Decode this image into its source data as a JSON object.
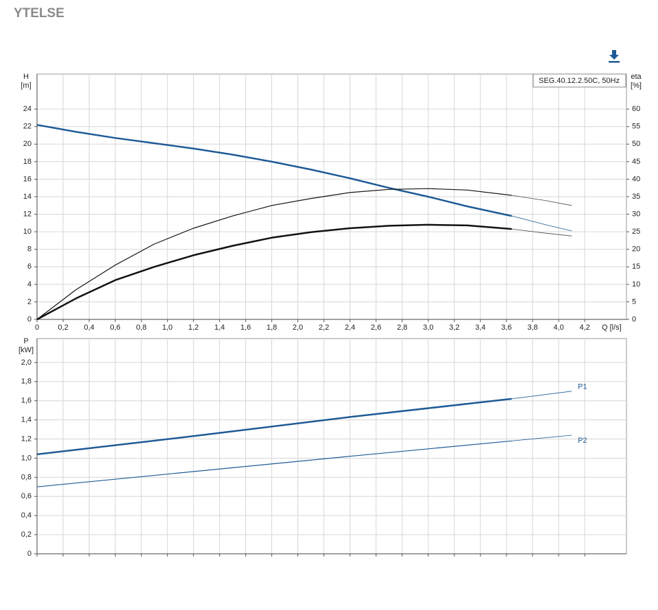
{
  "header": {
    "title": "YTELSE"
  },
  "chart_data": [
    {
      "type": "line",
      "y_label": "H",
      "y_unit": "[m]",
      "y2_label": "eta",
      "y2_unit": "[%]",
      "x_label": "Q [l/s]",
      "legend": "SEG.40.12.2.50C, 50Hz",
      "grid": true,
      "xlim": [
        0,
        4.52
      ],
      "xticks": [
        0,
        {
          "value": 0.2,
          "label": "0,2"
        },
        {
          "value": 0.4,
          "label": "0,4"
        },
        {
          "value": 0.6,
          "label": "0,6"
        },
        {
          "value": 0.8,
          "label": "0,8"
        },
        {
          "value": 1.0,
          "label": "1,0"
        },
        {
          "value": 1.2,
          "label": "1,2"
        },
        {
          "value": 1.4,
          "label": "1,4"
        },
        {
          "value": 1.6,
          "label": "1,6"
        },
        {
          "value": 1.8,
          "label": "1,8"
        },
        {
          "value": 2.0,
          "label": "2,0"
        },
        {
          "value": 2.2,
          "label": "2,2"
        },
        {
          "value": 2.4,
          "label": "2,4"
        },
        {
          "value": 2.6,
          "label": "2,6"
        },
        {
          "value": 2.8,
          "label": "2,8"
        },
        {
          "value": 3.0,
          "label": "3,0"
        },
        {
          "value": 3.2,
          "label": "3,2"
        },
        {
          "value": 3.4,
          "label": "3,4"
        },
        {
          "value": 3.6,
          "label": "3,6"
        },
        {
          "value": 3.8,
          "label": "3,8"
        },
        {
          "value": 4.0,
          "label": "4,0"
        },
        {
          "value": 4.2,
          "label": "4,2"
        }
      ],
      "ylim": [
        0,
        28
      ],
      "yticks": [
        0,
        2,
        4,
        6,
        8,
        10,
        12,
        14,
        16,
        18,
        20,
        22,
        24
      ],
      "y2lim": [
        0,
        70
      ],
      "y2ticks": [
        0,
        5,
        10,
        15,
        20,
        25,
        30,
        35,
        40,
        45,
        50,
        55,
        60
      ],
      "x": [
        0,
        0.3,
        0.6,
        0.9,
        1.2,
        1.5,
        1.8,
        2.1,
        2.4,
        2.7,
        3.0,
        3.3,
        3.64,
        3.9,
        4.1
      ],
      "series": [
        {
          "color": "#1f5a96",
          "width": 2.5,
          "values": [
            22.2,
            21.4,
            20.7,
            20.1,
            19.5,
            18.8,
            18.0,
            17.1,
            16.1,
            15.0,
            14.0,
            12.9,
            11.8,
            null,
            null
          ]
        },
        {
          "color": "#1f5a96",
          "width": 0.8,
          "values": [
            null,
            null,
            null,
            null,
            null,
            null,
            null,
            null,
            null,
            null,
            null,
            null,
            11.8,
            10.8,
            10.1
          ]
        },
        {
          "color": "#111111",
          "width": 1.2,
          "axis": "y2",
          "values": [
            0,
            8.5,
            15.5,
            21.5,
            26,
            29.5,
            32.5,
            34.5,
            36.2,
            37.1,
            37.3,
            36.9,
            35.4,
            null,
            null
          ]
        },
        {
          "color": "#444444",
          "width": 0.8,
          "axis": "y2",
          "values": [
            null,
            null,
            null,
            null,
            null,
            null,
            null,
            null,
            null,
            null,
            null,
            null,
            35.4,
            33.9,
            32.5
          ]
        },
        {
          "color": "#111111",
          "width": 2.5,
          "axis": "y2",
          "values": [
            0,
            6,
            11.2,
            15,
            18.3,
            21,
            23.3,
            24.9,
            26,
            26.7,
            27,
            26.8,
            25.8,
            null,
            null
          ]
        },
        {
          "color": "#444444",
          "width": 0.8,
          "axis": "y2",
          "values": [
            null,
            null,
            null,
            null,
            null,
            null,
            null,
            null,
            null,
            null,
            null,
            null,
            25.8,
            24.6,
            23.8
          ]
        }
      ]
    },
    {
      "type": "line",
      "y_label": "P",
      "y_unit": "[kW]",
      "grid": true,
      "xlim": [
        0,
        4.52
      ],
      "ylim": [
        0,
        2.25
      ],
      "yticks": [
        0,
        {
          "value": 0.2,
          "label": "0,2"
        },
        {
          "value": 0.4,
          "label": "0,4"
        },
        {
          "value": 0.6,
          "label": "0,6"
        },
        {
          "value": 0.8,
          "label": "0,8"
        },
        {
          "value": 1.0,
          "label": "1,0"
        },
        {
          "value": 1.2,
          "label": "1,2"
        },
        {
          "value": 1.4,
          "label": "1,4"
        },
        {
          "value": 1.6,
          "label": "1,6"
        },
        {
          "value": 1.8,
          "label": "1,8"
        },
        {
          "value": 2.0,
          "label": "2,0"
        }
      ],
      "x": [
        0,
        1.2,
        2.4,
        3.64,
        4.1
      ],
      "series": [
        {
          "color": "#1f5a96",
          "width": 2.5,
          "values": [
            1.04,
            1.23,
            1.43,
            1.62,
            null
          ]
        },
        {
          "name": "P1",
          "color": "#1f5a96",
          "width": 0.8,
          "values": [
            null,
            null,
            null,
            1.62,
            1.7
          ]
        },
        {
          "color": "#1f5a96",
          "width": 1.2,
          "values": [
            0.7,
            0.86,
            1.02,
            1.18,
            null
          ]
        },
        {
          "name": "P2",
          "color": "#1f5a96",
          "width": 0.8,
          "values": [
            null,
            null,
            null,
            1.18,
            1.24
          ]
        }
      ]
    }
  ]
}
